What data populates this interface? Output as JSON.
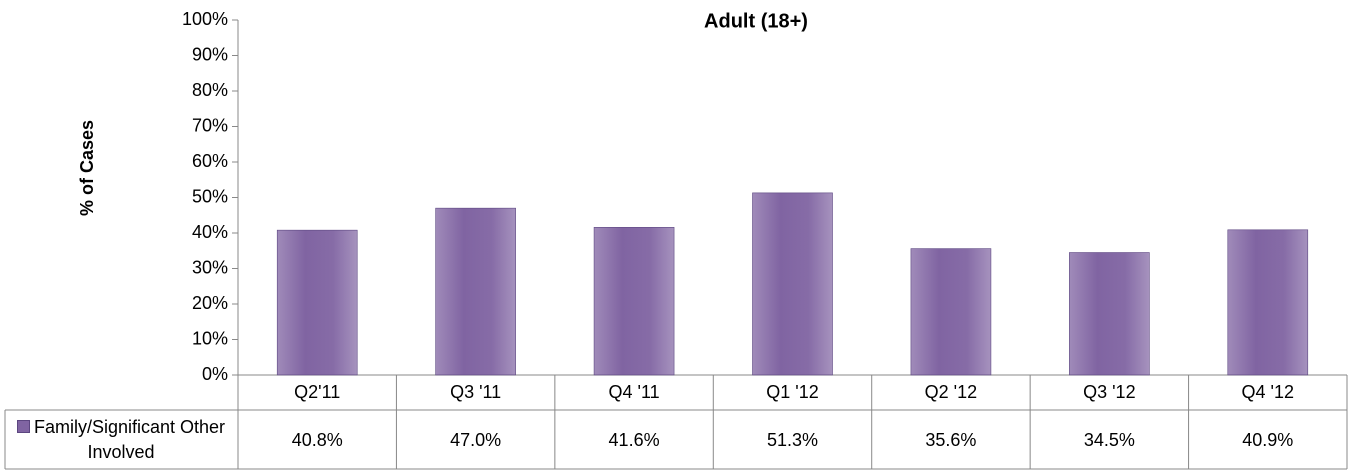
{
  "chart_data": {
    "type": "bar",
    "title": "Adult (18+)",
    "y_label": "% of Cases",
    "categories": [
      "Q2'11",
      "Q3 '11",
      "Q4 '11",
      "Q1 '12",
      "Q2 '12",
      "Q3 '12",
      "Q4 '12"
    ],
    "series": [
      {
        "name": "Family/Significant Other Involved",
        "color": "#8064a2",
        "values": [
          40.8,
          47.0,
          41.6,
          51.3,
          35.6,
          34.5,
          40.9
        ],
        "value_labels": [
          "40.8%",
          "47.0%",
          "41.6%",
          "51.3%",
          "35.6%",
          "34.5%",
          "40.9%"
        ]
      }
    ],
    "ylim": [
      0,
      100
    ],
    "yticks": [
      {
        "value": 0,
        "label": "0%"
      },
      {
        "value": 10,
        "label": "10%"
      },
      {
        "value": 20,
        "label": "20%"
      },
      {
        "value": 30,
        "label": "30%"
      },
      {
        "value": 40,
        "label": "40%"
      },
      {
        "value": 50,
        "label": "50%"
      },
      {
        "value": 60,
        "label": "60%"
      },
      {
        "value": 70,
        "label": "70%"
      },
      {
        "value": 80,
        "label": "80%"
      },
      {
        "value": 90,
        "label": "90%"
      },
      {
        "value": 100,
        "label": "100%"
      }
    ],
    "grid": false
  }
}
